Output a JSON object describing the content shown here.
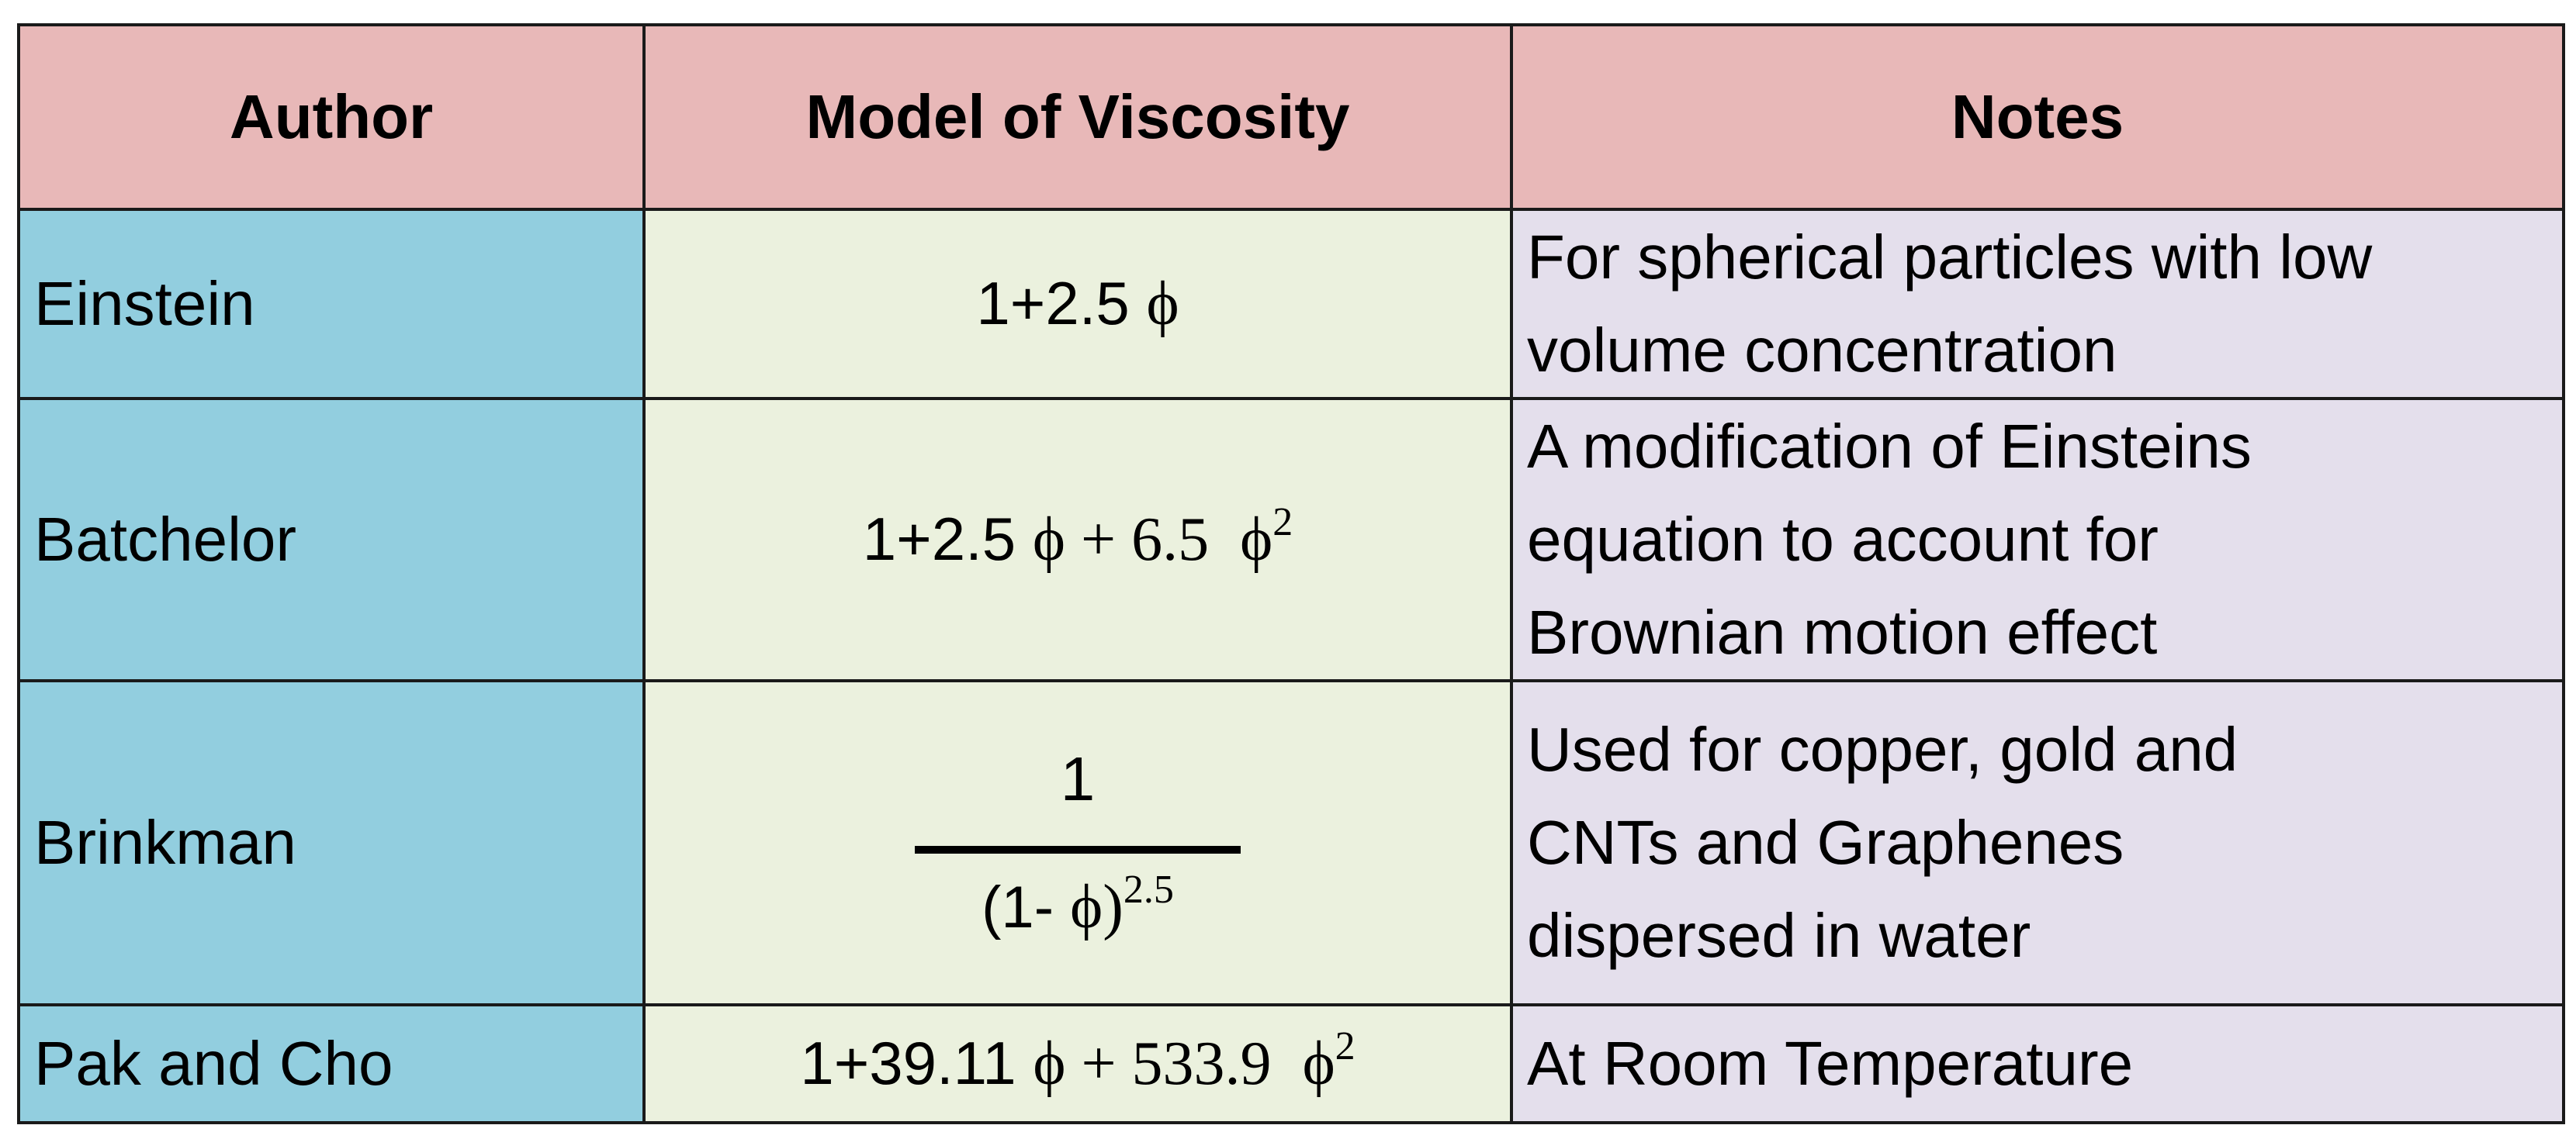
{
  "table": {
    "headers": {
      "author": "Author",
      "model": "Model of Viscosity",
      "notes": "Notes"
    },
    "rows": [
      {
        "author": "Einstein",
        "model": {
          "prefix": "1+2.5 ",
          "phi": "ϕ"
        },
        "notes": [
          "For spherical particles with low",
          "volume concentration"
        ]
      },
      {
        "author": "Batchelor",
        "model": {
          "prefix": "1+2.5 ",
          "phi": "ϕ",
          "plus": " + 6.5  ",
          "phi2": "ϕ",
          "exp": "2"
        },
        "notes": [
          "A modification of Einsteins",
          "equation to account for",
          "Brownian motion effect"
        ]
      },
      {
        "author": "Brinkman",
        "model": {
          "numerator": "1",
          "den_open": "(1- ",
          "phi": "ϕ",
          "den_close": ")",
          "exp": "2.5"
        },
        "notes": [
          "Used for copper, gold and",
          "CNTs and Graphenes",
          "dispersed in water"
        ]
      },
      {
        "author": "Pak and Cho",
        "model": {
          "prefix": "1+39.11 ",
          "phi": "ϕ",
          "plus": " + 533.9  ",
          "phi2": "ϕ",
          "exp": "2"
        },
        "notes": [
          "At Room Temperature"
        ]
      }
    ]
  }
}
